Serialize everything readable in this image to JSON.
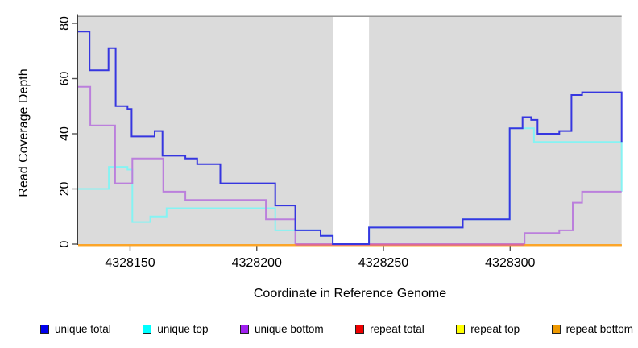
{
  "chart_data": {
    "type": "line",
    "step": true,
    "title": "",
    "xlabel": "Coordinate in Reference Genome",
    "ylabel": "Read Coverage Depth",
    "xlim": [
      4328129.5,
      4328344
    ],
    "ylim": [
      0,
      80
    ],
    "x_ticks": [
      4328150,
      4328200,
      4328250,
      4328300
    ],
    "y_ticks": [
      0,
      20,
      40,
      60,
      80
    ],
    "grid": false,
    "legend_position": "bottom",
    "plot_background": "#DBDBDB",
    "axis_color": "#3C3C3C",
    "masked_region": {
      "x_start": 4328230,
      "x_end": 4328244.3,
      "color": "#FFFFFF"
    },
    "overlap_highlight": {
      "x_start": 4328215.2,
      "x_end": 4328305.7,
      "value": 0,
      "color": "#DD6A93"
    },
    "series": [
      {
        "name": "unique total",
        "color": "#3636E0",
        "swatch": "#0000EE",
        "points": [
          [
            4328129.5,
            77
          ],
          [
            4328134,
            63
          ],
          [
            4328141.5,
            71
          ],
          [
            4328144.3,
            50
          ],
          [
            4328149,
            49
          ],
          [
            4328150.6,
            39
          ],
          [
            4328159.7,
            41
          ],
          [
            4328162.8,
            32
          ],
          [
            4328171.8,
            31
          ],
          [
            4328176.5,
            29
          ],
          [
            4328185.6,
            22
          ],
          [
            4328207.3,
            14
          ],
          [
            4328215.2,
            5
          ],
          [
            4328225.2,
            3
          ],
          [
            4328230,
            0
          ],
          [
            4328244.3,
            6
          ],
          [
            4328281.3,
            9
          ],
          [
            4328299.8,
            42
          ],
          [
            4328304.9,
            46
          ],
          [
            4328308.3,
            45
          ],
          [
            4328310.8,
            40
          ],
          [
            4328319.4,
            41
          ],
          [
            4328324.2,
            54
          ],
          [
            4328328.4,
            55
          ],
          [
            4328344,
            37
          ]
        ]
      },
      {
        "name": "unique top",
        "color": "#85F3F3",
        "swatch": "#00FFFF",
        "points": [
          [
            4328129.5,
            20
          ],
          [
            4328141.6,
            28
          ],
          [
            4328149,
            27
          ],
          [
            4328150.9,
            8
          ],
          [
            4328158,
            10
          ],
          [
            4328164.4,
            13
          ],
          [
            4328207.3,
            5
          ],
          [
            4328225.2,
            3
          ],
          [
            4328230,
            0
          ],
          [
            4328244.3,
            6
          ],
          [
            4328281.3,
            9
          ],
          [
            4328299.8,
            42
          ],
          [
            4328309.4,
            37
          ],
          [
            4328344,
            19
          ]
        ]
      },
      {
        "name": "unique bottom",
        "color": "#BB7FDC",
        "swatch": "#A020F0",
        "points": [
          [
            4328129.5,
            57
          ],
          [
            4328134.3,
            43
          ],
          [
            4328144.1,
            22
          ],
          [
            4328150.9,
            31
          ],
          [
            4328163.1,
            19
          ],
          [
            4328171.8,
            16
          ],
          [
            4328203.6,
            9
          ],
          [
            4328215.2,
            0
          ],
          [
            4328305.7,
            4
          ],
          [
            4328319.4,
            5
          ],
          [
            4328324.7,
            15
          ],
          [
            4328328.4,
            19
          ]
        ]
      },
      {
        "name": "repeat total",
        "color": "#DD0000",
        "swatch": "#EE0000",
        "points": [
          [
            4328129.5,
            0
          ]
        ]
      },
      {
        "name": "repeat top",
        "color": "#EEEE00",
        "swatch": "#FFFF00",
        "points": [
          [
            4328129.5,
            0
          ]
        ]
      },
      {
        "name": "repeat bottom",
        "color": "#FFA428",
        "swatch": "#EE9900",
        "points": [
          [
            4328129.5,
            0
          ]
        ]
      }
    ]
  }
}
